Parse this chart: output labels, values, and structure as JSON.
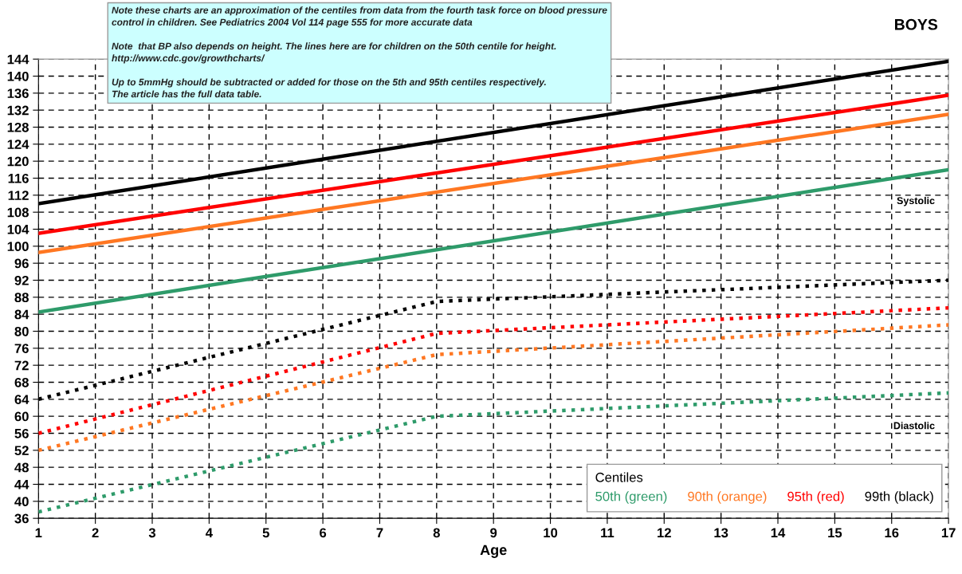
{
  "chart_data": {
    "type": "line",
    "title": "BOYS",
    "xlabel": "Age",
    "legend_title": "Centiles",
    "legend": "bottom right",
    "grid": true,
    "xlim": [
      1,
      17
    ],
    "xticks": [
      1,
      2,
      3,
      4,
      5,
      6,
      7,
      8,
      9,
      10,
      11,
      12,
      13,
      14,
      15,
      16,
      17
    ],
    "ylim": [
      36,
      144
    ],
    "yticks": [
      36,
      40,
      44,
      48,
      52,
      56,
      60,
      64,
      68,
      72,
      76,
      80,
      84,
      88,
      92,
      96,
      100,
      104,
      108,
      112,
      116,
      120,
      124,
      128,
      132,
      136,
      140,
      144
    ],
    "series": [
      {
        "name": "50th (green)",
        "color": "#2e9b6a",
        "line_style": "solid",
        "x": [
          1,
          17
        ],
        "values": [
          84.5,
          118
        ]
      },
      {
        "name": "90th (orange)",
        "color": "#ff7722",
        "line_style": "solid",
        "x": [
          1,
          17
        ],
        "values": [
          98.5,
          131
        ]
      },
      {
        "name": "95th (red)",
        "color": "#ff0000",
        "line_style": "solid",
        "x": [
          1,
          17
        ],
        "values": [
          103,
          135.5
        ]
      },
      {
        "name": "99th (black)",
        "color": "#000000",
        "line_style": "solid",
        "x": [
          1,
          17
        ],
        "values": [
          110,
          143.5
        ]
      },
      {
        "color": "#2e9b6a",
        "line_style": "dotted",
        "x": [
          1,
          8,
          17
        ],
        "values": [
          37.5,
          60,
          65.5
        ]
      },
      {
        "color": "#ff7722",
        "line_style": "dotted",
        "x": [
          1,
          8,
          17
        ],
        "values": [
          52,
          74.5,
          81.5
        ]
      },
      {
        "color": "#ff0000",
        "line_style": "dotted",
        "x": [
          1,
          8,
          17
        ],
        "values": [
          56,
          79.5,
          85.5
        ]
      },
      {
        "color": "#000000",
        "line_style": "dotted",
        "x": [
          1,
          8,
          17
        ],
        "values": [
          64,
          87,
          92
        ]
      }
    ],
    "annotations": [
      "Systolic",
      "Diastolic",
      "Note these charts are an approximation of the centiles from data from the fourth task force on blood pressure\ncontrol in children. See Pediatrics 2004 Vol 114 page 555 for more accurate data\n\nNote  that BP also depends on height. The lines here are for children on the 50th centile for height.\nhttp://www.cdc.gov/growthcharts/\n\nUp to 5mmHg should be subtracted or added for those on the 5th and 95th centiles respectively.\nThe article has the full data table."
    ]
  }
}
